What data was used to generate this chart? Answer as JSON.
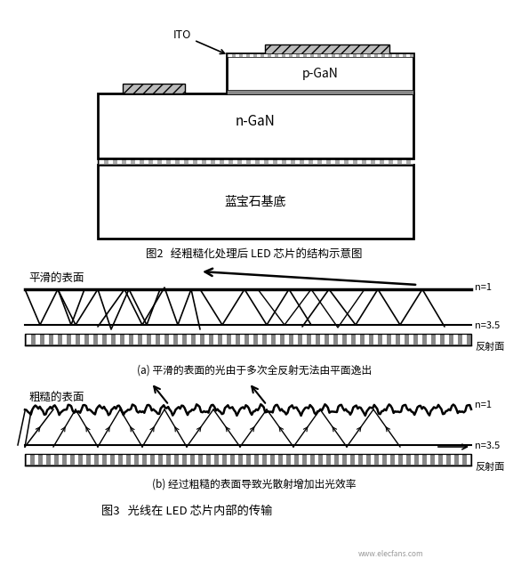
{
  "fig2_caption": "图2   经粗糙化处理后 LED 芯片的结构示意图",
  "fig3_caption": "图3   光线在 LED 芯片内部的传输",
  "fig_a_caption": "(a) 平滑的表面的光由于多次全反射无法由平面逸出",
  "fig_b_caption": "(b) 经过粗糙的表面导致光散射增加出光效率",
  "label_smooth": "平滑的表面",
  "label_rough": "粗糙的表面",
  "label_n1": "n=1",
  "label_n35": "n=3.5",
  "label_reflect": "反射面",
  "label_ITO": "ITO",
  "label_pGaN": "p-GaN",
  "label_nGaN": "n-GaN",
  "label_sapphire": "蓝宝石基底",
  "bg_color": "#ffffff",
  "line_color": "#000000"
}
